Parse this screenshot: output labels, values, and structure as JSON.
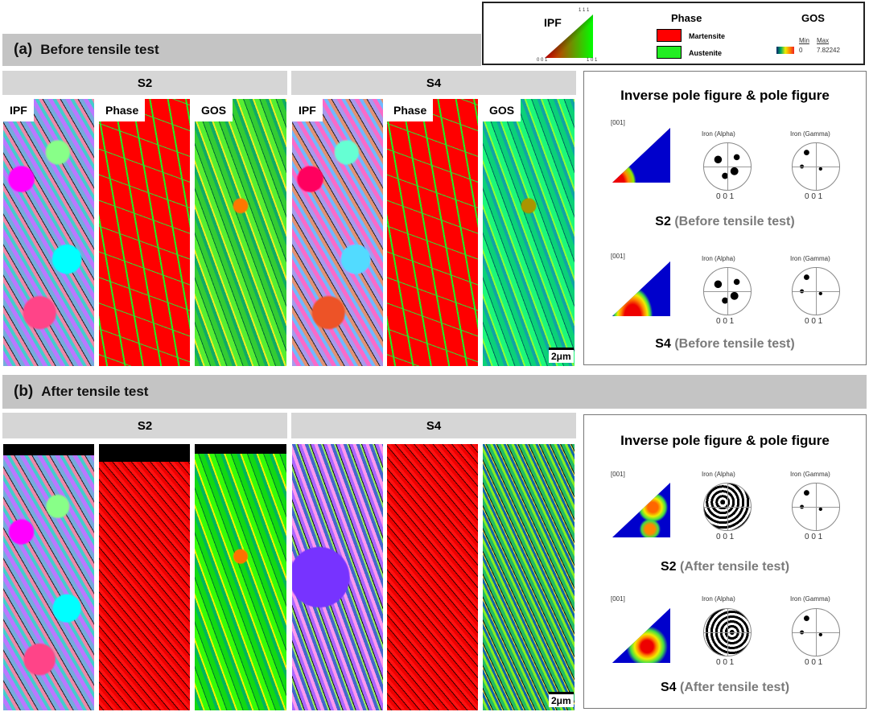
{
  "legend": {
    "ipf_title": "IPF",
    "ipf_corners": [
      "1 1 1",
      "0 0 1",
      "1 0 1"
    ],
    "phase_title": "Phase",
    "phases": [
      {
        "name": "Martensite",
        "color": "#ff0000"
      },
      {
        "name": "Austenite",
        "color": "#22ee22"
      }
    ],
    "gos_title": "GOS",
    "gos_min_label": "Min",
    "gos_max_label": "Max",
    "gos_min": "0",
    "gos_max": "7.82242"
  },
  "sections": [
    {
      "tag": "(a)",
      "title": "Before tensile test",
      "samples": [
        "S2",
        "S4"
      ],
      "map_labels": [
        "IPF",
        "Phase",
        "GOS"
      ],
      "scale": "2μm",
      "panel": {
        "title": "Inverse pole figure & pole figure",
        "entries": [
          {
            "dir": "[001]",
            "alpha": "Iron (Alpha)",
            "gamma": "Iron (Gamma)",
            "axis": "0 0 1",
            "sample": "S2",
            "cond": "(Before tensile test)"
          },
          {
            "dir": "[001]",
            "alpha": "Iron (Alpha)",
            "gamma": "Iron (Gamma)",
            "axis": "0 0 1",
            "sample": "S4",
            "cond": "(Before tensile test)"
          }
        ]
      }
    },
    {
      "tag": "(b)",
      "title": "After tensile test",
      "samples": [
        "S2",
        "S4"
      ],
      "scale": "2μm",
      "panel": {
        "title": "Inverse pole figure & pole figure",
        "entries": [
          {
            "dir": "[001]",
            "alpha": "Iron (Alpha)",
            "gamma": "Iron (Gamma)",
            "axis": "0 0 1",
            "sample": "S2",
            "cond": "(After tensile test)"
          },
          {
            "dir": "[001]",
            "alpha": "Iron (Alpha)",
            "gamma": "Iron (Gamma)",
            "axis": "0 0 1",
            "sample": "S4",
            "cond": "(After tensile test)"
          }
        ]
      }
    }
  ]
}
